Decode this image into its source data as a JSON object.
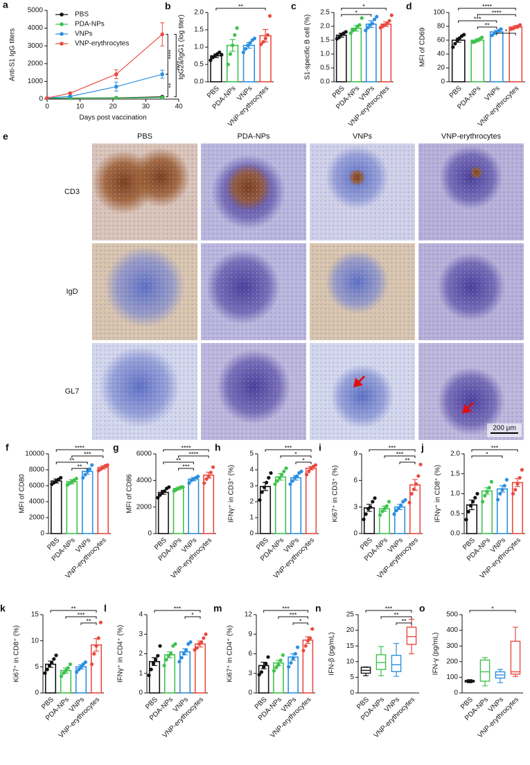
{
  "chart_data": [
    {
      "type": "line",
      "panel": "a",
      "ylabel": "Anti-S1 IgG titers",
      "xlabel": "Days post vaccination",
      "x": [
        0,
        7,
        21,
        35
      ],
      "xlim": [
        0,
        40
      ],
      "xticks": [
        0,
        10,
        20,
        30,
        40
      ],
      "ylim": [
        0,
        5000
      ],
      "yticks": [
        0,
        1000,
        2000,
        3000,
        4000,
        5000
      ],
      "series": [
        {
          "name": "PBS",
          "color": "#111111",
          "values": [
            50,
            60,
            70,
            130
          ],
          "errors": [
            10,
            10,
            15,
            20
          ]
        },
        {
          "name": "PDA-NPs",
          "color": "#3ec24c",
          "values": [
            50,
            60,
            60,
            90
          ],
          "errors": [
            10,
            10,
            10,
            15
          ]
        },
        {
          "name": "VNPs",
          "color": "#2a8fe0",
          "values": [
            60,
            150,
            700,
            1400
          ],
          "errors": [
            10,
            30,
            250,
            230
          ]
        },
        {
          "name": "VNP-erythrocytes",
          "color": "#ea4a3f",
          "values": [
            60,
            330,
            1400,
            3650
          ],
          "errors": [
            10,
            40,
            250,
            650
          ]
        }
      ],
      "significance": [
        {
          "from": 3,
          "to": 0,
          "label": "****"
        },
        {
          "from": 3,
          "to": 2,
          "label": "****"
        },
        {
          "from": 2,
          "to": 0,
          "label": "**"
        }
      ]
    },
    {
      "type": "bar",
      "panel": "b",
      "ylabel": "IgG2a/IgG1 (log titer)",
      "categories": [
        "PBS",
        "PDA-NPs",
        "VNPs",
        "VNP-erythrocytes"
      ],
      "colors": [
        "#111111",
        "#3ec24c",
        "#2a8fe0",
        "#ea4a3f"
      ],
      "ylim": [
        0,
        2
      ],
      "yticks": [
        {
          "value": 0,
          "label": "0.0"
        },
        0.5,
        {
          "value": 1,
          "label": "1.0"
        },
        1.5,
        {
          "value": 2,
          "label": "2.0"
        }
      ],
      "values": [
        0.75,
        1.05,
        1.05,
        1.33
      ],
      "errors": [
        0.05,
        0.17,
        0.08,
        0.18
      ],
      "points": [
        [
          0.62,
          0.7,
          0.74,
          0.8,
          0.85,
          0.78
        ],
        [
          0.5,
          0.8,
          1.05,
          1.35,
          1.55
        ],
        [
          0.85,
          0.95,
          1.05,
          1.12,
          1.2,
          1.25
        ],
        [
          1.08,
          1.15,
          1.25,
          1.35,
          1.9
        ]
      ],
      "significance": [
        {
          "from": 0,
          "to": 3,
          "label": "**"
        }
      ]
    },
    {
      "type": "bar",
      "panel": "c",
      "ylabel": "S1-specific B cell (%)",
      "categories": [
        "PBS",
        "PDA-NPs",
        "VNPs",
        "VNP-erythrocytes"
      ],
      "colors": [
        "#111111",
        "#3ec24c",
        "#2a8fe0",
        "#ea4a3f"
      ],
      "ylim": [
        0,
        2.5
      ],
      "yticks": [
        {
          "value": 0,
          "label": "0.0"
        },
        0.5,
        {
          "value": 1,
          "label": "1.0"
        },
        1.5,
        {
          "value": 2,
          "label": "2.0"
        },
        2.5
      ],
      "values": [
        1.68,
        1.93,
        2.08,
        2.08
      ],
      "errors": [
        0.07,
        0.1,
        0.12,
        0.08
      ],
      "points": [
        [
          1.55,
          1.6,
          1.7,
          1.75,
          1.8
        ],
        [
          1.75,
          1.85,
          1.9,
          2.0,
          2.05,
          2.3
        ],
        [
          1.85,
          1.95,
          2.05,
          2.1,
          2.25,
          2.35
        ],
        [
          1.95,
          2.0,
          2.05,
          2.1,
          2.2,
          2.4
        ]
      ],
      "significance": [
        {
          "from": 0,
          "to": 3,
          "label": "*"
        },
        {
          "from": 0,
          "to": 2,
          "label": "*"
        }
      ]
    },
    {
      "type": "bar",
      "panel": "d",
      "ylabel": "MFI of CD69",
      "categories": [
        "PBS",
        "PDA-NPs",
        "VNPs",
        "VNP-erythrocytes"
      ],
      "colors": [
        "#111111",
        "#3ec24c",
        "#2a8fe0",
        "#ea4a3f"
      ],
      "ylim": [
        0,
        100
      ],
      "yticks": [
        0,
        20,
        40,
        60,
        80,
        100
      ],
      "values": [
        60,
        60,
        72,
        79
      ],
      "errors": [
        3,
        2,
        2,
        2
      ],
      "points": [
        [
          50,
          55,
          60,
          63,
          66,
          68
        ],
        [
          57,
          58,
          60,
          62,
          64
        ],
        [
          67,
          70,
          72,
          74,
          76
        ],
        [
          76,
          77,
          79,
          80,
          82
        ]
      ],
      "significance": [
        {
          "from": 0,
          "to": 3,
          "label": "****"
        },
        {
          "from": 1,
          "to": 3,
          "label": "****"
        },
        {
          "from": 0,
          "to": 2,
          "label": "***"
        },
        {
          "from": 1,
          "to": 2,
          "label": "**"
        },
        {
          "from": 2,
          "to": 3,
          "label": "*"
        }
      ]
    },
    {
      "type": "bar",
      "panel": "f",
      "ylabel": "MFI of CD80",
      "categories": [
        "PBS",
        "PDA-NPs",
        "VNPs",
        "VNP-erythrocytes"
      ],
      "colors": [
        "#111111",
        "#3ec24c",
        "#2a8fe0",
        "#ea4a3f"
      ],
      "ylim": [
        0,
        10000
      ],
      "yticks": [
        0,
        2000,
        4000,
        6000,
        8000,
        10000
      ],
      "values": [
        6600,
        6500,
        7800,
        8300
      ],
      "errors": [
        250,
        250,
        350,
        200
      ],
      "points": [
        [
          6200,
          6400,
          6600,
          6800,
          7000
        ],
        [
          6100,
          6300,
          6500,
          6700,
          6900
        ],
        [
          7000,
          7400,
          7800,
          8100,
          8600
        ],
        [
          7900,
          8100,
          8300,
          8500,
          8600
        ]
      ],
      "significance": [
        {
          "from": 0,
          "to": 3,
          "label": "****"
        },
        {
          "from": 1,
          "to": 3,
          "label": "***"
        },
        {
          "from": 0,
          "to": 2,
          "label": "**"
        },
        {
          "from": 1,
          "to": 2,
          "label": "**"
        }
      ]
    },
    {
      "type": "bar",
      "panel": "g",
      "ylabel": "MFI of CD86",
      "categories": [
        "PBS",
        "PDA-NPs",
        "VNPs",
        "VNP-erythrocytes"
      ],
      "colors": [
        "#111111",
        "#3ec24c",
        "#2a8fe0",
        "#ea4a3f"
      ],
      "ylim": [
        0,
        6000
      ],
      "yticks": [
        0,
        2000,
        4000,
        6000
      ],
      "values": [
        3100,
        3400,
        4100,
        4400
      ],
      "errors": [
        150,
        100,
        120,
        220
      ],
      "points": [
        [
          2700,
          2900,
          3100,
          3200,
          3400,
          3500
        ],
        [
          3200,
          3300,
          3400,
          3500,
          3500
        ],
        [
          3800,
          4000,
          4100,
          4200,
          4300
        ],
        [
          3800,
          4100,
          4300,
          4600,
          5000
        ]
      ],
      "significance": [
        {
          "from": 0,
          "to": 3,
          "label": "****"
        },
        {
          "from": 1,
          "to": 3,
          "label": "****"
        },
        {
          "from": 0,
          "to": 2,
          "label": "**"
        },
        {
          "from": 1,
          "to": 2,
          "label": "***"
        }
      ]
    },
    {
      "type": "bar",
      "panel": "h",
      "ylabel": "IFNγ⁺ in CD3⁺ (%)",
      "categories": [
        "PBS",
        "PDA-NPs",
        "VNPs",
        "VNP-erythrocytes"
      ],
      "colors": [
        "#111111",
        "#3ec24c",
        "#2a8fe0",
        "#ea4a3f"
      ],
      "ylim": [
        0,
        5
      ],
      "yticks": [
        0,
        1,
        2,
        3,
        4,
        5
      ],
      "values": [
        2.95,
        3.55,
        3.5,
        4.1
      ],
      "errors": [
        0.25,
        0.2,
        0.15,
        0.1
      ],
      "points": [
        [
          2.1,
          2.6,
          2.9,
          3.2,
          3.5,
          3.8
        ],
        [
          3.1,
          3.3,
          3.5,
          3.7,
          3.9,
          4.1
        ],
        [
          3.1,
          3.3,
          3.5,
          3.6,
          3.8,
          3.9
        ],
        [
          3.7,
          3.9,
          4.1,
          4.2,
          4.3
        ]
      ],
      "significance": [
        {
          "from": 0,
          "to": 3,
          "label": "***"
        },
        {
          "from": 1,
          "to": 3,
          "label": "*"
        },
        {
          "from": 2,
          "to": 3,
          "label": "*"
        }
      ]
    },
    {
      "type": "bar",
      "panel": "i",
      "ylabel": "Ki67⁺ in CD3⁺ (%)",
      "categories": [
        "PBS",
        "PDA-NPs",
        "VNPs",
        "VNP-erythrocytes"
      ],
      "colors": [
        "#111111",
        "#3ec24c",
        "#2a8fe0",
        "#ea4a3f"
      ],
      "ylim": [
        0,
        9
      ],
      "yticks": [
        0,
        3,
        6,
        9
      ],
      "values": [
        2.9,
        2.8,
        3.0,
        5.5
      ],
      "errors": [
        0.4,
        0.3,
        0.3,
        0.6
      ],
      "points": [
        [
          1.6,
          2.2,
          2.8,
          3.0,
          3.6,
          4.0
        ],
        [
          2.1,
          2.5,
          2.8,
          3.1,
          3.6
        ],
        [
          2.2,
          2.6,
          2.9,
          3.2,
          3.6,
          3.8
        ],
        [
          3.5,
          4.5,
          5.0,
          5.6,
          6.5,
          7.8
        ]
      ],
      "significance": [
        {
          "from": 0,
          "to": 3,
          "label": "***"
        },
        {
          "from": 1,
          "to": 3,
          "label": "***"
        },
        {
          "from": 2,
          "to": 3,
          "label": "**"
        }
      ]
    },
    {
      "type": "bar",
      "panel": "j",
      "ylabel": "IFNγ⁺ in CD8⁺ (%)",
      "categories": [
        "PBS",
        "PDA-NPs",
        "VNPs",
        "VNP-erythrocytes"
      ],
      "colors": [
        "#111111",
        "#3ec24c",
        "#2a8fe0",
        "#ea4a3f"
      ],
      "ylim": [
        0,
        2
      ],
      "yticks": [
        {
          "value": 0,
          "label": "0.0"
        },
        0.5,
        {
          "value": 1,
          "label": "1.0"
        },
        1.5,
        {
          "value": 2,
          "label": "2.0"
        }
      ],
      "values": [
        0.72,
        1.07,
        1.12,
        1.28
      ],
      "errors": [
        0.12,
        0.08,
        0.08,
        0.1
      ],
      "points": [
        [
          0.35,
          0.55,
          0.7,
          0.8,
          0.9,
          1.0
        ],
        [
          0.8,
          0.95,
          1.05,
          1.15,
          1.3
        ],
        [
          0.85,
          1.0,
          1.1,
          1.2,
          1.35
        ],
        [
          1.0,
          1.1,
          1.25,
          1.4,
          1.6
        ]
      ],
      "significance": [
        {
          "from": 0,
          "to": 3,
          "label": "***"
        },
        {
          "from": 0,
          "to": 2,
          "label": "*"
        }
      ]
    },
    {
      "type": "bar",
      "panel": "k",
      "ylabel": "Ki67⁺ in CD8⁺ (%)",
      "categories": [
        "PBS",
        "PDA-NPs",
        "VNPs",
        "VNP-erythrocytes"
      ],
      "colors": [
        "#111111",
        "#3ec24c",
        "#2a8fe0",
        "#ea4a3f"
      ],
      "ylim": [
        0,
        15
      ],
      "yticks": [
        0,
        5,
        10,
        15
      ],
      "values": [
        5.5,
        4.3,
        5.0,
        9.2
      ],
      "errors": [
        0.6,
        0.5,
        0.4,
        1.2
      ],
      "points": [
        [
          3.8,
          4.5,
          5.2,
          5.8,
          6.5,
          7.2
        ],
        [
          3.2,
          3.8,
          4.3,
          4.8,
          5.5
        ],
        [
          4.0,
          4.5,
          5.0,
          5.5,
          5.9
        ],
        [
          5.5,
          7.5,
          9.0,
          10.5,
          13.5
        ]
      ],
      "significance": [
        {
          "from": 0,
          "to": 3,
          "label": "**"
        },
        {
          "from": 1,
          "to": 3,
          "label": "***"
        },
        {
          "from": 2,
          "to": 3,
          "label": "**"
        }
      ]
    },
    {
      "type": "bar",
      "panel": "l",
      "ylabel": "IFNγ⁺ in CD4⁺ (%)",
      "categories": [
        "PBS",
        "PDA-NPs",
        "VNPs",
        "VNP-erythrocytes"
      ],
      "colors": [
        "#111111",
        "#3ec24c",
        "#2a8fe0",
        "#ea4a3f"
      ],
      "ylim": [
        0,
        4
      ],
      "yticks": [
        0,
        1,
        2,
        3,
        4
      ],
      "values": [
        1.6,
        1.95,
        2.1,
        2.5
      ],
      "errors": [
        0.2,
        0.15,
        0.15,
        0.15
      ],
      "points": [
        [
          0.9,
          1.2,
          1.5,
          1.7,
          1.9,
          2.4
        ],
        [
          1.4,
          1.7,
          1.9,
          2.0,
          2.4,
          2.5
        ],
        [
          1.6,
          1.8,
          2.0,
          2.2,
          2.5,
          2.6
        ],
        [
          2.2,
          2.3,
          2.5,
          2.6,
          2.8,
          3.0
        ]
      ],
      "significance": [
        {
          "from": 0,
          "to": 3,
          "label": "***"
        },
        {
          "from": 2,
          "to": 3,
          "label": "*"
        }
      ]
    },
    {
      "type": "bar",
      "panel": "m",
      "ylabel": "Ki67⁺ in CD4⁺ (%)",
      "categories": [
        "PBS",
        "PDA-NPs",
        "VNPs",
        "VNP-erythrocytes"
      ],
      "colors": [
        "#111111",
        "#3ec24c",
        "#2a8fe0",
        "#ea4a3f"
      ],
      "ylim": [
        0,
        12
      ],
      "yticks": [
        0,
        3,
        6,
        9,
        12
      ],
      "values": [
        4.2,
        4.6,
        5.5,
        8.1
      ],
      "errors": [
        0.5,
        0.4,
        0.5,
        0.5
      ],
      "points": [
        [
          2.8,
          3.2,
          4.0,
          4.5,
          5.5
        ],
        [
          3.4,
          3.9,
          4.3,
          5.0,
          5.8
        ],
        [
          4.0,
          4.6,
          5.3,
          6.0,
          7.0
        ],
        [
          6.5,
          7.2,
          8.0,
          8.4,
          9.8
        ]
      ],
      "significance": [
        {
          "from": 0,
          "to": 3,
          "label": "***"
        },
        {
          "from": 1,
          "to": 3,
          "label": "***"
        },
        {
          "from": 2,
          "to": 3,
          "label": "*"
        }
      ]
    },
    {
      "type": "box",
      "panel": "n",
      "ylabel": "IFN-β (pg/mL)",
      "categories": [
        "PBS",
        "PDA-NPs",
        "VNPs",
        "VNP-erythrocytes"
      ],
      "colors": [
        "#111111",
        "#3ec24c",
        "#2a8fe0",
        "#ea4a3f"
      ],
      "ylim": [
        0,
        25
      ],
      "yticks": [
        0,
        5,
        10,
        15,
        20,
        25
      ],
      "min": [
        5.5,
        5.5,
        5.3,
        12.5
      ],
      "q1": [
        6.3,
        7.5,
        6.8,
        15.5
      ],
      "median": [
        7.2,
        9.7,
        9,
        18
      ],
      "q3": [
        8.2,
        12.2,
        12,
        21
      ],
      "max": [
        8.3,
        14.8,
        15.8,
        23.5
      ],
      "significance": [
        {
          "from": 0,
          "to": 3,
          "label": "***"
        },
        {
          "from": 1,
          "to": 3,
          "label": "**"
        },
        {
          "from": 2,
          "to": 3,
          "label": "**"
        }
      ]
    },
    {
      "type": "box",
      "panel": "o",
      "ylabel": "IFN-γ (pg/mL)",
      "categories": [
        "PBS",
        "PDA-NPs",
        "VNPs",
        "VNP-erythrocytes"
      ],
      "colors": [
        "#111111",
        "#3ec24c",
        "#2a8fe0",
        "#ea4a3f"
      ],
      "ylim": [
        0,
        500
      ],
      "yticks": [
        0,
        100,
        200,
        300,
        400,
        500
      ],
      "min": [
        65,
        45,
        65,
        105
      ],
      "q1": [
        70,
        75,
        95,
        120
      ],
      "median": [
        75,
        135,
        115,
        135
      ],
      "q3": [
        80,
        210,
        135,
        330
      ],
      "max": [
        85,
        225,
        150,
        420
      ],
      "significance": [
        {
          "from": 0,
          "to": 3,
          "label": "*"
        }
      ]
    }
  ],
  "micrograph": {
    "panel": "e",
    "columns": [
      "PBS",
      "PDA-NPs",
      "VNPs",
      "VNP-erythrocytes"
    ],
    "rows": [
      "CD3",
      "IgD",
      "GL7"
    ],
    "scale_bar": "200 μm"
  }
}
